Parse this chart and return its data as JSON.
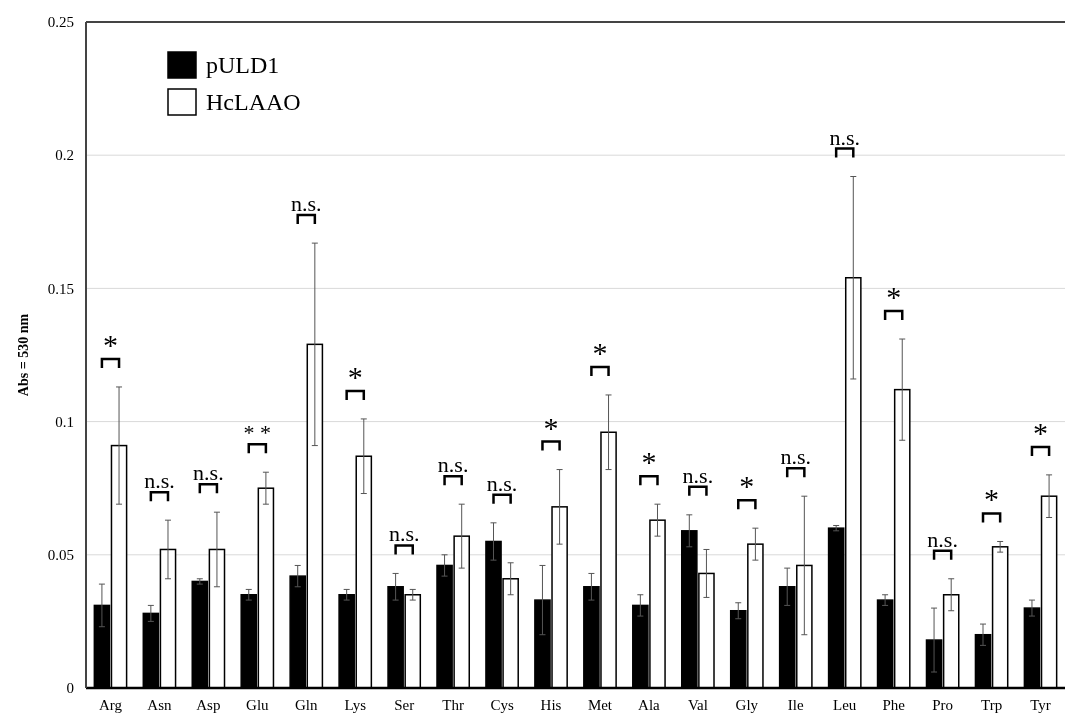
{
  "chart_data": {
    "type": "bar",
    "ylabel": "Abs = 530 nm",
    "categories": [
      "Arg",
      "Asn",
      "Asp",
      "Glu",
      "Gln",
      "Lys",
      "Ser",
      "Thr",
      "Cys",
      "His",
      "Met",
      "Ala",
      "Val",
      "Gly",
      "Ile",
      "Leu",
      "Phe",
      "Pro",
      "Trp",
      "Tyr"
    ],
    "series": [
      {
        "name": "pULD1",
        "color": "#000000",
        "values": [
          0.031,
          0.028,
          0.04,
          0.035,
          0.042,
          0.035,
          0.038,
          0.046,
          0.055,
          0.033,
          0.038,
          0.031,
          0.059,
          0.029,
          0.038,
          0.06,
          0.033,
          0.018,
          0.02,
          0.03
        ],
        "errors": [
          0.008,
          0.003,
          0.001,
          0.002,
          0.004,
          0.002,
          0.005,
          0.004,
          0.007,
          0.013,
          0.005,
          0.004,
          0.006,
          0.003,
          0.007,
          0.001,
          0.002,
          0.012,
          0.004,
          0.003
        ]
      },
      {
        "name": "HcLAAO",
        "color": "#ffffff",
        "values": [
          0.091,
          0.052,
          0.052,
          0.075,
          0.129,
          0.087,
          0.035,
          0.057,
          0.041,
          0.068,
          0.096,
          0.063,
          0.043,
          0.054,
          0.046,
          0.154,
          0.112,
          0.035,
          0.053,
          0.072
        ],
        "errors": [
          0.022,
          0.011,
          0.014,
          0.006,
          0.038,
          0.014,
          0.002,
          0.012,
          0.006,
          0.014,
          0.014,
          0.006,
          0.009,
          0.006,
          0.026,
          0.038,
          0.019,
          0.006,
          0.002,
          0.008
        ]
      }
    ],
    "ylim": [
      0,
      0.25
    ],
    "yticks": [
      0,
      0.05,
      0.1,
      0.15,
      0.2,
      0.25
    ],
    "grid": "y",
    "legend": "top left",
    "annotations": [
      "*",
      "n.s.",
      "n.s.",
      "* *",
      "n.s.",
      "*",
      "n.s.",
      "n.s.",
      "n.s.",
      "*",
      "*",
      "*",
      "n.s.",
      "*",
      "n.s.",
      "n.s.",
      "*",
      "n.s.",
      "*",
      "*"
    ]
  }
}
